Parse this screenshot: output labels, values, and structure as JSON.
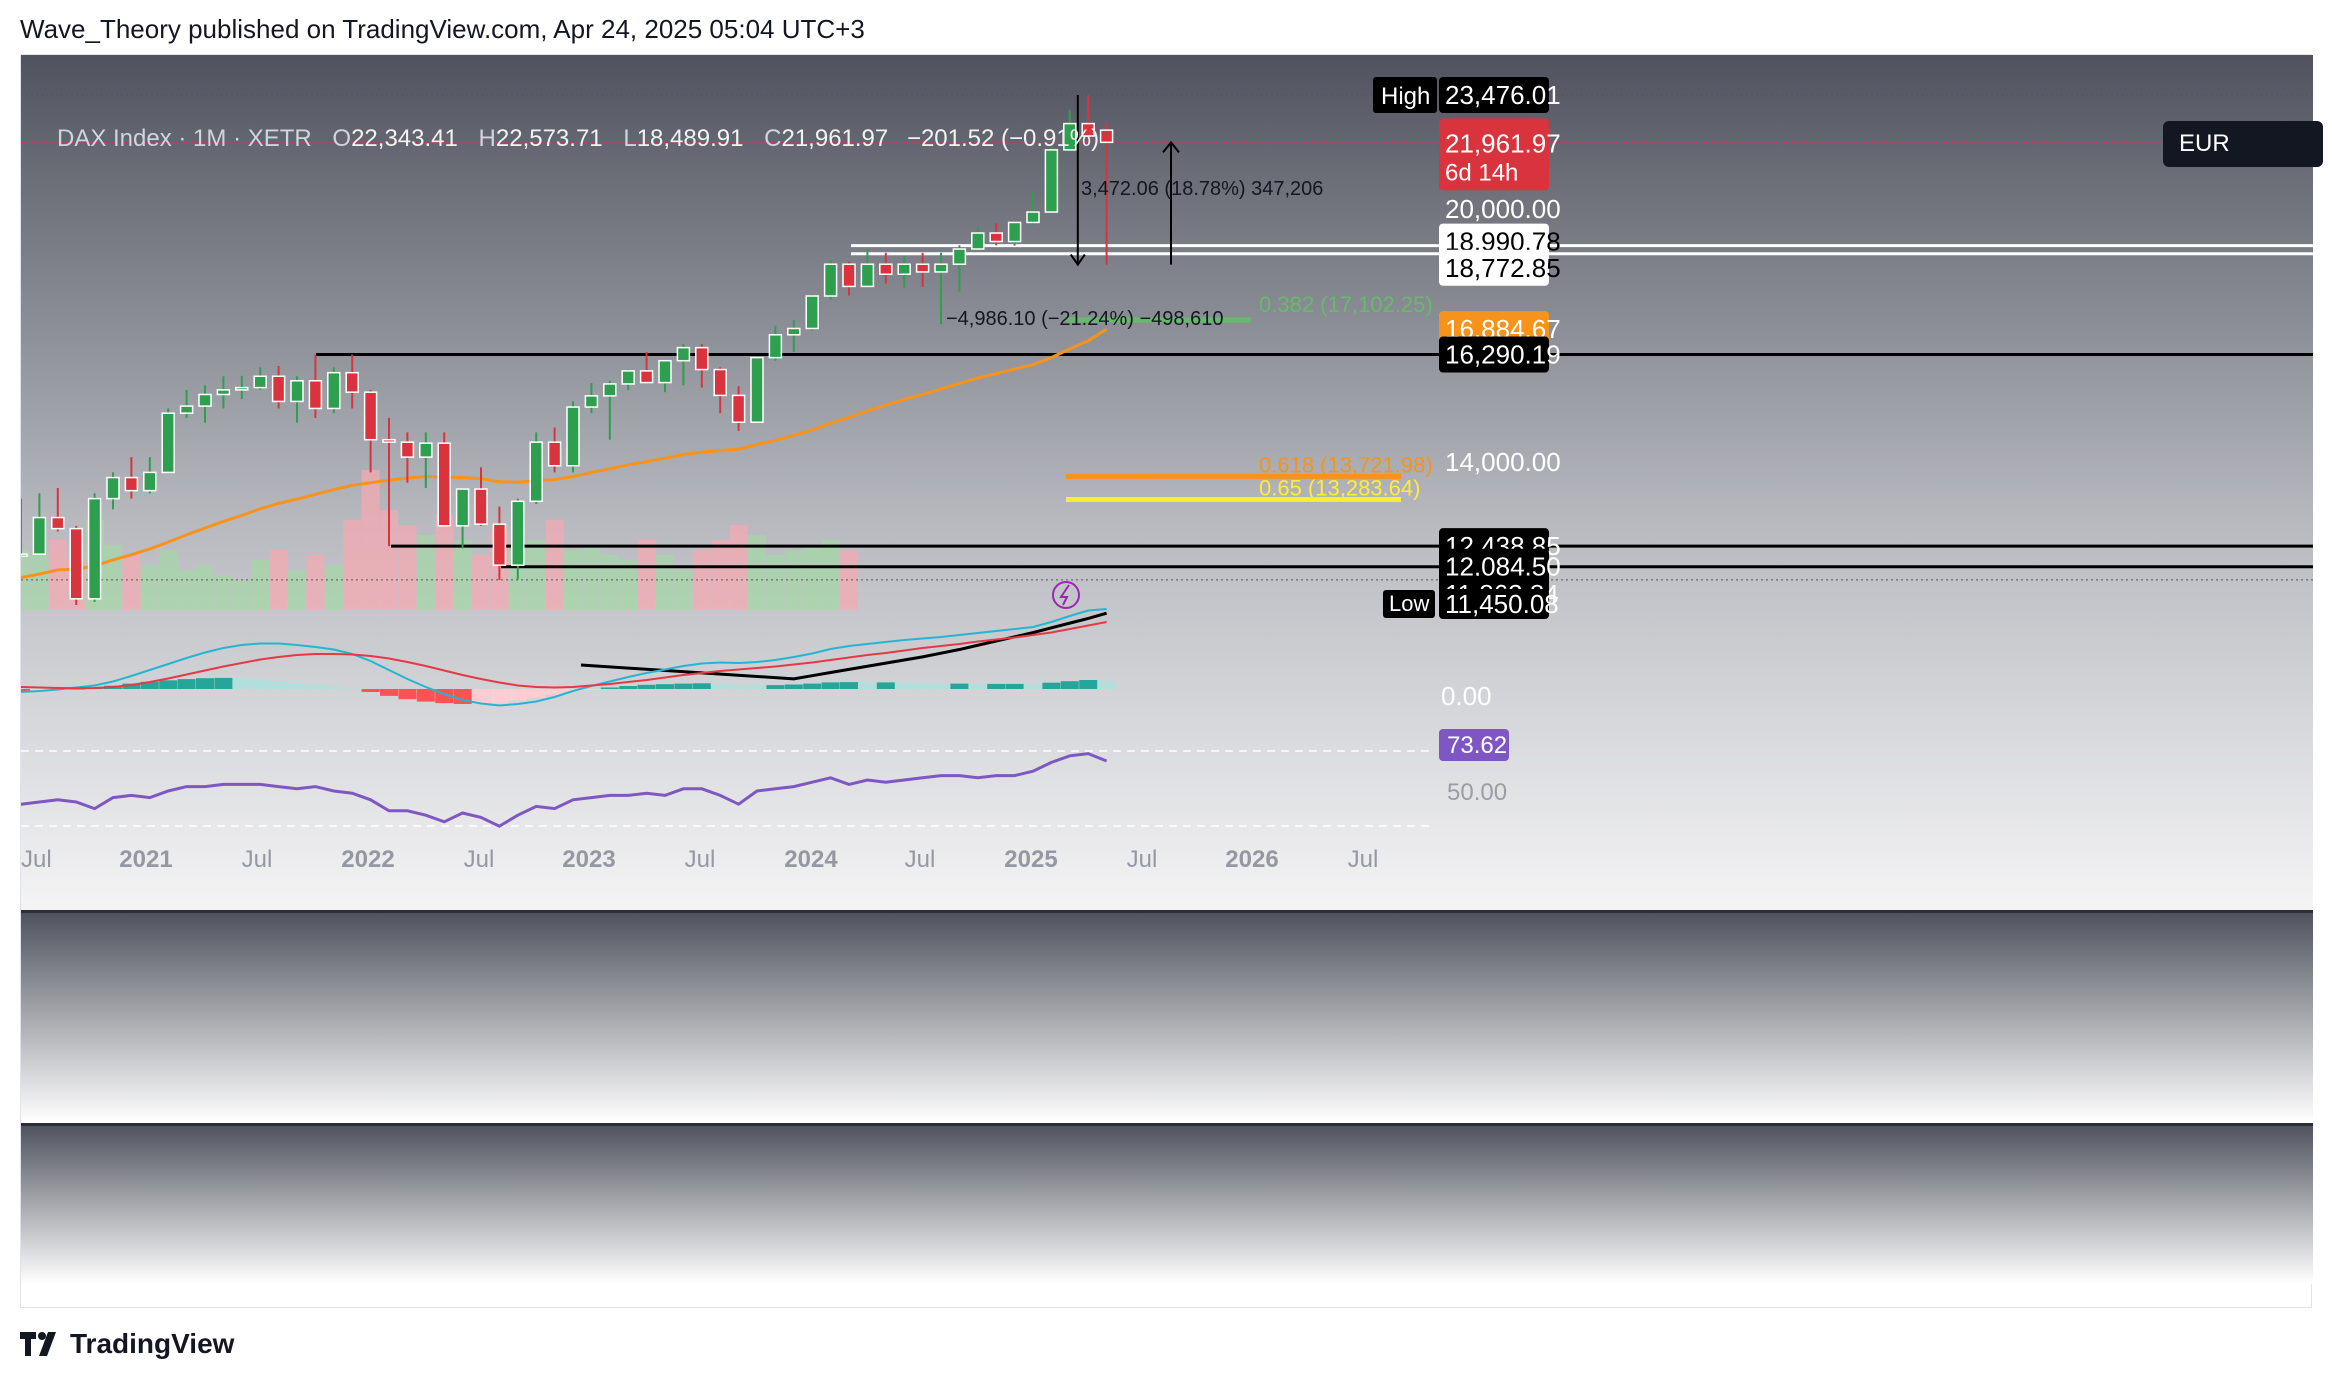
{
  "publisher": "Wave_Theory published on TradingView.com, Apr 24, 2025 05:04 UTC+3",
  "footer_brand": "TradingView",
  "header": {
    "symbol": "DAX Index · 1M · XETR",
    "open_key": "O",
    "open": "22,343.41",
    "high_key": "H",
    "high": "22,573.71",
    "low_key": "L",
    "low": "18,489.91",
    "close_key": "C",
    "close": "21,961.97",
    "change": "−201.52 (−0.91%)",
    "currency": "EUR"
  },
  "colors": {
    "up": "#2e9e4f",
    "down": "#d9343e",
    "ema": "#f7931a",
    "sma": "#000000",
    "fib_382": "#66bb6a",
    "fib_618": "#f7931a",
    "fib_65": "#ffeb3b",
    "rsi": "#7e57c2",
    "macd": "#26b5d1",
    "signal": "#e53945"
  },
  "price_labels": {
    "high_tag": "High",
    "high_value": "23,476.01",
    "last_value": "21,961.97",
    "countdown": "6d 14h",
    "p20000": "20,000.00",
    "s1": "18,990.78",
    "s2": "18,772.85",
    "ema_value": "16,884.67",
    "res": "16,290.19",
    "p14000": "14,000.00",
    "s3": "12,438.85",
    "s4": "12,084.50",
    "s5": "11,862.84",
    "low_tag": "Low",
    "low_value": "11,450.08"
  },
  "annotations": {
    "up_move": "3,472.06 (18.78%) 347,206",
    "down_move": "−4,986.10 (−21.24%) −498,610",
    "fib_382": "0.382 (17,102.25)",
    "fib_618": "0.618 (13,721.98)",
    "fib_65": "0.65 (13,283.64)"
  },
  "macd_panel": {
    "zero_label": "0.00"
  },
  "rsi_panel": {
    "value": "73.62",
    "mid_label": "50.00"
  },
  "time_axis": [
    "Jul",
    "2021",
    "Jul",
    "2022",
    "Jul",
    "2023",
    "Jul",
    "2024",
    "Jul",
    "2025",
    "Jul",
    "2026",
    "Jul"
  ],
  "chart_data": {
    "type": "candlestick",
    "title": "DAX Index · 1M · XETR",
    "interval": "1M",
    "y_range": [
      11450,
      23700
    ],
    "start_month": "2020-07",
    "candles": [
      {
        "o": 12300,
        "h": 13300,
        "l": 12250,
        "c": 12300
      },
      {
        "o": 12300,
        "h": 13400,
        "l": 12300,
        "c": 12950
      },
      {
        "o": 12950,
        "h": 13500,
        "l": 12700,
        "c": 12750
      },
      {
        "o": 12750,
        "h": 12800,
        "l": 11450,
        "c": 11550
      },
      {
        "o": 11550,
        "h": 13400,
        "l": 11500,
        "c": 13300
      },
      {
        "o": 13300,
        "h": 13800,
        "l": 13100,
        "c": 13700
      },
      {
        "o": 13700,
        "h": 14100,
        "l": 13300,
        "c": 13450
      },
      {
        "o": 13450,
        "h": 14100,
        "l": 13400,
        "c": 13800
      },
      {
        "o": 13800,
        "h": 15100,
        "l": 13800,
        "c": 15000
      },
      {
        "o": 15000,
        "h": 15500,
        "l": 14900,
        "c": 15150
      },
      {
        "o": 15150,
        "h": 15600,
        "l": 14800,
        "c": 15400
      },
      {
        "o": 15400,
        "h": 15800,
        "l": 15100,
        "c": 15500
      },
      {
        "o": 15500,
        "h": 15810,
        "l": 15300,
        "c": 15550
      },
      {
        "o": 15550,
        "h": 16000,
        "l": 15500,
        "c": 15800
      },
      {
        "o": 15800,
        "h": 16030,
        "l": 15100,
        "c": 15250
      },
      {
        "o": 15250,
        "h": 15800,
        "l": 14800,
        "c": 15700
      },
      {
        "o": 15700,
        "h": 16290,
        "l": 14900,
        "c": 15100
      },
      {
        "o": 15100,
        "h": 16000,
        "l": 15000,
        "c": 15880
      },
      {
        "o": 15880,
        "h": 16290,
        "l": 15100,
        "c": 15450
      },
      {
        "o": 15450,
        "h": 15500,
        "l": 13800,
        "c": 14450
      },
      {
        "o": 14450,
        "h": 14900,
        "l": 12440,
        "c": 14400
      },
      {
        "o": 14400,
        "h": 14600,
        "l": 13600,
        "c": 14100
      },
      {
        "o": 14100,
        "h": 14600,
        "l": 13500,
        "c": 14380
      },
      {
        "o": 14380,
        "h": 14600,
        "l": 12800,
        "c": 12800
      },
      {
        "o": 12800,
        "h": 13400,
        "l": 12400,
        "c": 13480
      },
      {
        "o": 13480,
        "h": 13900,
        "l": 12800,
        "c": 12830
      },
      {
        "o": 12830,
        "h": 13150,
        "l": 11860,
        "c": 12110
      },
      {
        "o": 12110,
        "h": 13300,
        "l": 11870,
        "c": 13250
      },
      {
        "o": 13250,
        "h": 14600,
        "l": 13200,
        "c": 14400
      },
      {
        "o": 14400,
        "h": 14700,
        "l": 13800,
        "c": 13930
      },
      {
        "o": 13930,
        "h": 15250,
        "l": 13800,
        "c": 15130
      },
      {
        "o": 15130,
        "h": 15650,
        "l": 15000,
        "c": 15370
      },
      {
        "o": 15370,
        "h": 15700,
        "l": 14450,
        "c": 15630
      },
      {
        "o": 15630,
        "h": 15950,
        "l": 15500,
        "c": 15920
      },
      {
        "o": 15920,
        "h": 16350,
        "l": 15700,
        "c": 15660
      },
      {
        "o": 15660,
        "h": 16110,
        "l": 15450,
        "c": 16150
      },
      {
        "o": 16150,
        "h": 16530,
        "l": 15600,
        "c": 16450
      },
      {
        "o": 16450,
        "h": 16530,
        "l": 15550,
        "c": 15950
      },
      {
        "o": 15950,
        "h": 16000,
        "l": 15000,
        "c": 15380
      },
      {
        "o": 15380,
        "h": 15580,
        "l": 14630,
        "c": 14810
      },
      {
        "o": 14810,
        "h": 16250,
        "l": 14800,
        "c": 16220
      },
      {
        "o": 16220,
        "h": 16970,
        "l": 16150,
        "c": 16750
      },
      {
        "o": 16750,
        "h": 17100,
        "l": 16350,
        "c": 16900
      },
      {
        "o": 16900,
        "h": 17720,
        "l": 16850,
        "c": 17690
      },
      {
        "o": 17690,
        "h": 18600,
        "l": 17600,
        "c": 18500
      },
      {
        "o": 18500,
        "h": 18570,
        "l": 17700,
        "c": 17930
      },
      {
        "o": 17930,
        "h": 18900,
        "l": 17900,
        "c": 18500
      },
      {
        "o": 18500,
        "h": 18800,
        "l": 18000,
        "c": 18240
      },
      {
        "o": 18240,
        "h": 18700,
        "l": 17900,
        "c": 18500
      },
      {
        "o": 18500,
        "h": 18800,
        "l": 17920,
        "c": 18300
      },
      {
        "o": 18300,
        "h": 18800,
        "l": 17000,
        "c": 18500
      },
      {
        "o": 18500,
        "h": 19000,
        "l": 17800,
        "c": 18900
      },
      {
        "o": 18900,
        "h": 19500,
        "l": 18900,
        "c": 19330
      },
      {
        "o": 19330,
        "h": 19600,
        "l": 19000,
        "c": 19100
      },
      {
        "o": 19100,
        "h": 19650,
        "l": 18990,
        "c": 19620
      },
      {
        "o": 19620,
        "h": 20500,
        "l": 19550,
        "c": 19910
      },
      {
        "o": 19910,
        "h": 21800,
        "l": 19900,
        "c": 21730
      },
      {
        "o": 21730,
        "h": 23000,
        "l": 21700,
        "c": 22550
      },
      {
        "o": 22550,
        "h": 23476,
        "l": 22000,
        "c": 22160
      },
      {
        "o": 22343,
        "h": 22574,
        "l": 18490,
        "c": 21962
      }
    ],
    "ema_series": [
      11900,
      11960,
      12030,
      12040,
      12100,
      12200,
      12290,
      12390,
      12510,
      12640,
      12760,
      12880,
      12990,
      13110,
      13210,
      13290,
      13380,
      13470,
      13550,
      13600,
      13650,
      13690,
      13720,
      13710,
      13700,
      13680,
      13620,
      13610,
      13640,
      13660,
      13720,
      13800,
      13870,
      13950,
      14010,
      14080,
      14150,
      14200,
      14230,
      14260,
      14350,
      14440,
      14540,
      14650,
      14790,
      14910,
      15050,
      15170,
      15290,
      15400,
      15520,
      15640,
      15760,
      15860,
      15960,
      16060,
      16220,
      16420,
      16610,
      16884
    ],
    "sma200_series": [
      11150,
      11200,
      11250,
      11300,
      11350,
      11400,
      11450,
      11500,
      11560,
      11620,
      11690,
      11760,
      11830,
      11900,
      11980,
      12060,
      12140,
      12230
    ],
    "horizontal_levels": [
      23476.01,
      18990.78,
      18772.85,
      16290.19,
      12438.85,
      12084.5,
      11862.84
    ],
    "fibonacci": [
      {
        "ratio": 0.382,
        "price": 17102.25
      },
      {
        "ratio": 0.618,
        "price": 13721.98
      },
      {
        "ratio": 0.65,
        "price": 13283.64
      }
    ],
    "measurements": [
      {
        "change": 3472.06,
        "percent": 18.78
      },
      {
        "change": -4986.1,
        "percent": -21.24
      }
    ],
    "rsi_series": [
      54,
      55,
      56,
      55,
      52,
      57,
      58,
      57,
      60,
      62,
      62,
      63,
      63,
      63,
      62,
      61,
      62,
      60,
      59,
      56,
      51,
      51,
      49,
      46,
      50,
      48,
      44,
      49,
      53,
      52,
      56,
      57,
      58,
      58,
      59,
      58,
      61,
      61,
      58,
      54,
      60,
      61,
      62,
      64,
      66,
      63,
      65,
      64,
      65,
      66,
      67,
      67,
      66,
      67,
      67,
      69,
      73,
      76,
      77,
      73.62
    ],
    "macd_series": [
      -60,
      -40,
      -10,
      30,
      70,
      150,
      260,
      380,
      500,
      620,
      730,
      820,
      880,
      910,
      910,
      880,
      840,
      790,
      700,
      560,
      380,
      200,
      40,
      -100,
      -220,
      -290,
      -330,
      -300,
      -250,
      -160,
      -40,
      60,
      150,
      240,
      320,
      390,
      460,
      510,
      530,
      520,
      540,
      580,
      640,
      710,
      800,
      860,
      900,
      940,
      980,
      1010,
      1040,
      1080,
      1120,
      1160,
      1200,
      1240,
      1340,
      1460,
      1570,
      1600
    ],
    "signal_series": [
      40,
      30,
      20,
      15,
      20,
      40,
      80,
      140,
      210,
      290,
      370,
      450,
      520,
      590,
      640,
      680,
      700,
      700,
      690,
      660,
      610,
      540,
      460,
      370,
      280,
      200,
      130,
      70,
      40,
      30,
      40,
      70,
      100,
      140,
      180,
      230,
      280,
      320,
      360,
      390,
      420,
      450,
      490,
      530,
      580,
      630,
      680,
      720,
      770,
      820,
      860,
      900,
      950,
      990,
      1030,
      1080,
      1130,
      1200,
      1270,
      1340
    ]
  }
}
